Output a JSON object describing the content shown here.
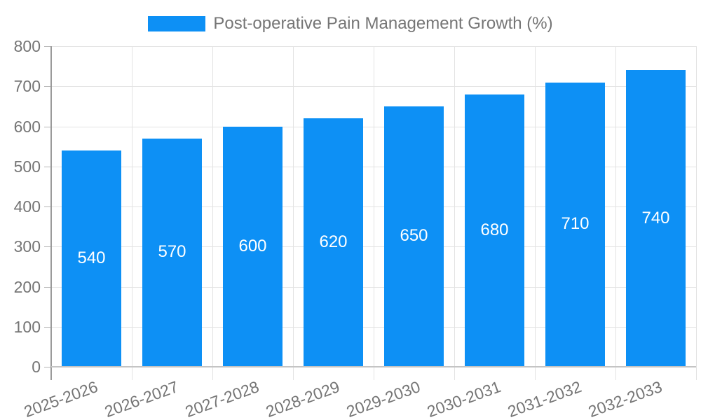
{
  "chart_data": {
    "type": "bar",
    "title": "Post-operative Pain Management Growth (%)",
    "categories": [
      "2025-2026",
      "2026-2027",
      "2027-2028",
      "2028-2029",
      "2029-2030",
      "2030-2031",
      "2031-2032",
      "2032-2033"
    ],
    "values": [
      540,
      570,
      600,
      620,
      650,
      680,
      710,
      740
    ],
    "xlabel": "",
    "ylabel": "",
    "ylim": [
      0,
      800
    ],
    "ytick_step": 100,
    "yticks": [
      0,
      100,
      200,
      300,
      400,
      500,
      600,
      700,
      800
    ],
    "grid": true,
    "legend_position": "top",
    "bar_labels_inside": true,
    "colors": {
      "bar": "#0d90f5",
      "bar_label": "#ffffff",
      "axis_text": "#757575",
      "gridline": "#e3e3e3",
      "y_axis_line": "#9a9a9a",
      "x_axis_line": "#c4c4c4"
    }
  },
  "legend": {
    "series_label": "Post-operative Pain Management Growth (%)",
    "swatch_color": "#0d90f5"
  }
}
